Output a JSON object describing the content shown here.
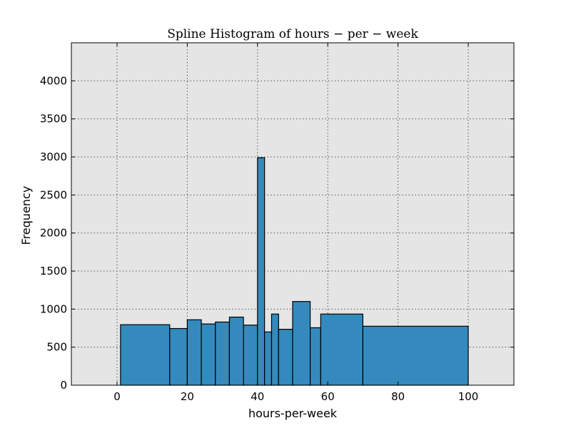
{
  "chart_data": {
    "type": "bar",
    "title": "Spline Histogram of hours − per − week",
    "xlabel": "hours-per-week",
    "ylabel": "Frequency",
    "xlim": [
      -13,
      113
    ],
    "ylim": [
      0,
      4500
    ],
    "xticks": [
      0,
      20,
      40,
      60,
      80,
      100
    ],
    "yticks": [
      0,
      500,
      1000,
      1500,
      2000,
      2500,
      3000,
      3500,
      4000
    ],
    "grid": true,
    "bar_color": "#348ABD",
    "background_color": "#E5E5E5",
    "bins": [
      {
        "x0": 1,
        "x1": 15,
        "value": 795
      },
      {
        "x0": 15,
        "x1": 20,
        "value": 745
      },
      {
        "x0": 20,
        "x1": 24,
        "value": 860
      },
      {
        "x0": 24,
        "x1": 28,
        "value": 805
      },
      {
        "x0": 28,
        "x1": 32,
        "value": 830
      },
      {
        "x0": 32,
        "x1": 36,
        "value": 895
      },
      {
        "x0": 36,
        "x1": 40,
        "value": 790
      },
      {
        "x0": 40,
        "x1": 42,
        "value": 2990
      },
      {
        "x0": 42,
        "x1": 44,
        "value": 700
      },
      {
        "x0": 44,
        "x1": 46,
        "value": 935
      },
      {
        "x0": 46,
        "x1": 50,
        "value": 735
      },
      {
        "x0": 50,
        "x1": 55,
        "value": 1100
      },
      {
        "x0": 55,
        "x1": 58,
        "value": 755
      },
      {
        "x0": 58,
        "x1": 70,
        "value": 935
      },
      {
        "x0": 70,
        "x1": 100,
        "value": 775
      }
    ]
  }
}
